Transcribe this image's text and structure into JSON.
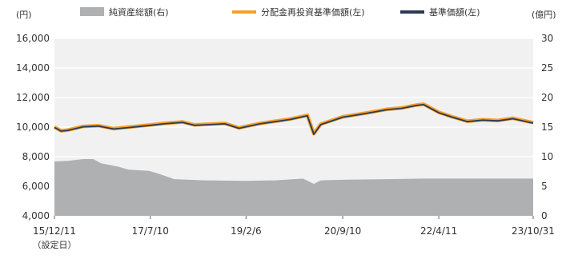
{
  "chart_data": {
    "type": "line",
    "legend": {
      "placement": "top",
      "items": [
        {
          "label": "純資産総額(右)",
          "color": "#aeb0b2",
          "kind": "area"
        },
        {
          "label": "分配金再投資基準価額(左)",
          "color": "#f4a12a",
          "kind": "line"
        },
        {
          "label": "基準価額(左)",
          "color": "#2b3a55",
          "kind": "line"
        }
      ]
    },
    "y_left": {
      "unit_label": "(円)",
      "lim": [
        4000,
        16000
      ],
      "ticks": [
        "16,000",
        "14,000",
        "12,000",
        "10,000",
        "8,000",
        "6,000",
        "4,000"
      ]
    },
    "y_right": {
      "unit_label": "(億円)",
      "lim": [
        0,
        30
      ],
      "ticks": [
        "30",
        "25",
        "20",
        "15",
        "10",
        "5",
        "0"
      ]
    },
    "x": {
      "lim": [
        "2015-12-11",
        "2023-10-31"
      ],
      "ticks": [
        {
          "date": "2015-12-11",
          "label": "15/12/11"
        },
        {
          "date": "2017-07-10",
          "label": "17/7/10"
        },
        {
          "date": "2019-02-06",
          "label": "19/2/6"
        },
        {
          "date": "2020-09-10",
          "label": "20/9/10"
        },
        {
          "date": "2022-04-11",
          "label": "22/4/11"
        },
        {
          "date": "2023-10-31",
          "label": "23/10/31"
        }
      ],
      "sublabel": "（設定日）"
    },
    "grid": true,
    "series": [
      {
        "name": "純資産総額(右)",
        "axis": "right",
        "type": "area",
        "color": "#aeb0b2",
        "points": [
          [
            "2015-12-11",
            9.2
          ],
          [
            "2016-03-01",
            9.3
          ],
          [
            "2016-06-01",
            9.6
          ],
          [
            "2016-08-01",
            9.6
          ],
          [
            "2016-09-15",
            8.9
          ],
          [
            "2017-01-01",
            8.3
          ],
          [
            "2017-03-01",
            7.8
          ],
          [
            "2017-07-01",
            7.6
          ],
          [
            "2017-09-01",
            7.1
          ],
          [
            "2017-12-01",
            6.2
          ],
          [
            "2018-06-01",
            6.0
          ],
          [
            "2019-02-01",
            5.9
          ],
          [
            "2019-08-01",
            6.0
          ],
          [
            "2020-01-15",
            6.3
          ],
          [
            "2020-03-20",
            5.4
          ],
          [
            "2020-05-01",
            6.0
          ],
          [
            "2020-09-10",
            6.1
          ],
          [
            "2021-06-01",
            6.2
          ],
          [
            "2022-01-01",
            6.3
          ],
          [
            "2022-04-11",
            6.3
          ],
          [
            "2023-01-01",
            6.3
          ],
          [
            "2023-10-31",
            6.3
          ]
        ]
      },
      {
        "name": "分配金再投資基準価額(左)",
        "axis": "left",
        "type": "line",
        "color": "#f4a12a",
        "points": [
          [
            "2015-12-11",
            10000
          ],
          [
            "2016-01-20",
            9750
          ],
          [
            "2016-03-01",
            9800
          ],
          [
            "2016-06-01",
            10050
          ],
          [
            "2016-09-01",
            10100
          ],
          [
            "2016-12-01",
            9900
          ],
          [
            "2017-03-01",
            10000
          ],
          [
            "2017-07-10",
            10150
          ],
          [
            "2017-10-01",
            10250
          ],
          [
            "2018-01-20",
            10350
          ],
          [
            "2018-04-01",
            10150
          ],
          [
            "2018-07-01",
            10200
          ],
          [
            "2018-10-01",
            10250
          ],
          [
            "2018-12-25",
            9950
          ],
          [
            "2019-02-06",
            10050
          ],
          [
            "2019-05-01",
            10250
          ],
          [
            "2019-08-01",
            10400
          ],
          [
            "2019-11-01",
            10550
          ],
          [
            "2020-02-10",
            10800
          ],
          [
            "2020-03-20",
            9550
          ],
          [
            "2020-05-01",
            10200
          ],
          [
            "2020-09-10",
            10700
          ],
          [
            "2021-01-01",
            10900
          ],
          [
            "2021-06-01",
            11200
          ],
          [
            "2021-09-01",
            11300
          ],
          [
            "2021-12-01",
            11500
          ],
          [
            "2022-01-10",
            11550
          ],
          [
            "2022-04-11",
            11000
          ],
          [
            "2022-07-01",
            10700
          ],
          [
            "2022-10-01",
            10400
          ],
          [
            "2023-01-01",
            10500
          ],
          [
            "2023-04-01",
            10450
          ],
          [
            "2023-07-01",
            10600
          ],
          [
            "2023-10-31",
            10300
          ]
        ]
      },
      {
        "name": "基準価額(左)",
        "axis": "left",
        "type": "line",
        "color": "#2b3a55",
        "points": [
          [
            "2015-12-11",
            9980
          ],
          [
            "2016-01-20",
            9730
          ],
          [
            "2016-03-01",
            9780
          ],
          [
            "2016-06-01",
            10020
          ],
          [
            "2016-09-01",
            10070
          ],
          [
            "2016-12-01",
            9870
          ],
          [
            "2017-03-01",
            9970
          ],
          [
            "2017-07-10",
            10120
          ],
          [
            "2017-10-01",
            10220
          ],
          [
            "2018-01-20",
            10320
          ],
          [
            "2018-04-01",
            10120
          ],
          [
            "2018-07-01",
            10170
          ],
          [
            "2018-10-01",
            10220
          ],
          [
            "2018-12-25",
            9920
          ],
          [
            "2019-02-06",
            10020
          ],
          [
            "2019-05-01",
            10220
          ],
          [
            "2019-08-01",
            10370
          ],
          [
            "2019-11-01",
            10520
          ],
          [
            "2020-02-10",
            10770
          ],
          [
            "2020-03-20",
            9520
          ],
          [
            "2020-05-01",
            10170
          ],
          [
            "2020-09-10",
            10670
          ],
          [
            "2021-01-01",
            10870
          ],
          [
            "2021-06-01",
            11170
          ],
          [
            "2021-09-01",
            11270
          ],
          [
            "2021-12-01",
            11470
          ],
          [
            "2022-01-10",
            11520
          ],
          [
            "2022-04-11",
            10970
          ],
          [
            "2022-07-01",
            10670
          ],
          [
            "2022-10-01",
            10370
          ],
          [
            "2023-01-01",
            10470
          ],
          [
            "2023-04-01",
            10420
          ],
          [
            "2023-07-01",
            10570
          ],
          [
            "2023-10-31",
            10270
          ]
        ]
      }
    ]
  }
}
